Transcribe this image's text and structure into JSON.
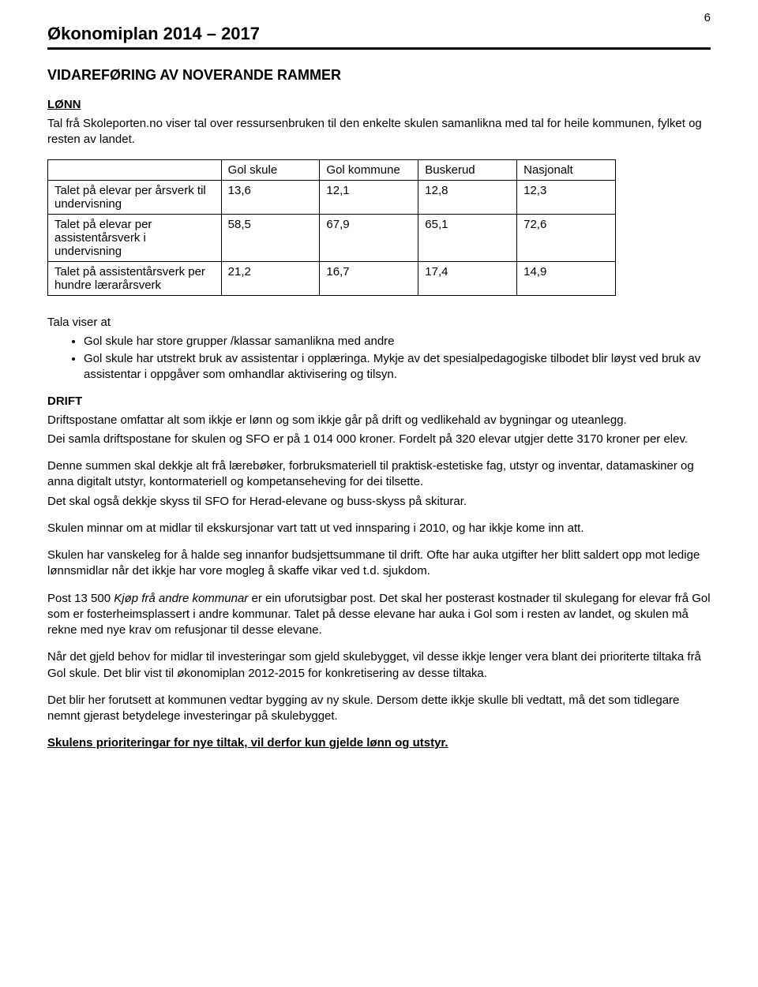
{
  "page_number": "6",
  "doc_title": "Økonomiplan 2014 – 2017",
  "section_heading": "VIDAREFØRING AV NOVERANDE RAMMER",
  "lonn_heading": "LØNN",
  "intro_para": "Tal frå Skoleporten.no viser tal over ressursenbruken til den enkelte skulen samanlikna med tal for heile kommunen, fylket og resten av landet.",
  "table": {
    "columns": [
      "",
      "Gol skule",
      "Gol kommune",
      "Buskerud",
      "Nasjonalt"
    ],
    "rows": [
      [
        "Talet på elevar per årsverk til undervisning",
        "13,6",
        "12,1",
        "12,8",
        "12,3"
      ],
      [
        "Talet på elevar per assistentårsverk i undervisning",
        "58,5",
        "67,9",
        "65,1",
        "72,6"
      ],
      [
        "Talet på assistentårsverk per hundre lærarårsverk",
        "21,2",
        "16,7",
        "17,4",
        "14,9"
      ]
    ]
  },
  "tala_heading": "Tala viser at",
  "bullets": [
    "Gol skule har store grupper /klassar samanlikna med andre",
    "Gol skule har utstrekt bruk av assistentar i opplæringa. Mykje av det spesialpedagogiske tilbodet blir løyst ved bruk av assistentar i oppgåver som omhandlar aktivisering og tilsyn."
  ],
  "drift_heading": "DRIFT",
  "drift_p1": "Driftspostane omfattar alt som ikkje er lønn og som ikkje går på drift og vedlikehald av bygningar og uteanlegg.",
  "drift_p2": "Dei samla driftspostane for skulen og SFO er på 1 014 000 kroner. Fordelt på 320 elevar utgjer dette 3170 kroner per elev.",
  "p3": "Denne summen skal dekkje alt frå lærebøker, forbruksmateriell til praktisk-estetiske fag, utstyr og inventar, datamaskiner og anna digitalt utstyr, kontormateriell og kompetanseheving for dei tilsette.",
  "p4": "Det skal også dekkje skyss til SFO for Herad-elevane og buss-skyss på skiturar.",
  "p5": "Skulen minnar om at midlar til ekskursjonar vart tatt ut ved innsparing i 2010, og har ikkje kome inn att.",
  "p6": "Skulen har vanskeleg for å halde seg innanfor budsjettsummane til drift. Ofte har auka utgifter her blitt saldert opp mot ledige lønnsmidlar når det ikkje har vore mogleg å skaffe vikar ved t.d. sjukdom.",
  "p7_pre": "Post 13 500 ",
  "p7_italic": "Kjøp frå andre kommunar",
  "p7_post": " er ein uforutsigbar post. Det skal her posterast kostnader til skulegang for elevar frå Gol som er fosterheimsplassert i andre kommunar. Talet på desse elevane har auka i Gol som i resten av landet, og skulen må rekne med nye krav om refusjonar til desse elevane.",
  "p8": "Når det gjeld behov for midlar til investeringar som gjeld skulebygget, vil desse  ikkje lenger vera blant dei prioriterte tiltaka frå Gol skule. Det blir vist til økonomiplan 2012-2015 for konkretisering av desse tiltaka.",
  "p9": "Det blir her forutsett at kommunen vedtar bygging av ny skule. Dersom dette ikkje skulle bli vedtatt, må det som tidlegare nemnt gjerast betydelege investeringar på skulebygget.",
  "p10": "Skulens prioriteringar for nye tiltak, vil derfor kun gjelde lønn og utstyr."
}
